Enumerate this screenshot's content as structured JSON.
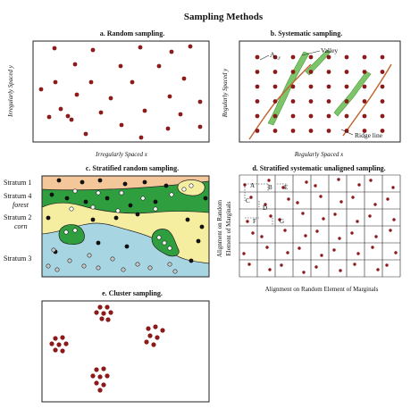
{
  "title": "Sampling Methods",
  "colors": {
    "dot": "#8b1a1a",
    "valley": "#7ec46a",
    "ridge": "#c0622a",
    "stratum1": "#f3c79a",
    "stratum4_forest": "#2e9e3f",
    "stratum2_corn": "#f5eea0",
    "stratum3": "#a8d5e2",
    "cluster_dot": "#8b1a1a"
  },
  "panels": {
    "a": {
      "title": "a. Random sampling.",
      "ylabel": "Irregularly Spaced y",
      "xlabel": "Irregularly Spaced x"
    },
    "b": {
      "title": "b. Systematic sampling.",
      "ylabel": "Regularly Spaced y",
      "xlabel": "Regularly Spaced x",
      "label_axy": "A",
      "label_axy_sub": "x,y",
      "label_valley": "Valley",
      "label_ridge": "Ridge line"
    },
    "c": {
      "title": "c. Stratified random sampling.",
      "strata": [
        {
          "name": "Stratum 1",
          "sub": ""
        },
        {
          "name": "Stratum 4",
          "sub": "forest"
        },
        {
          "name": "Stratum 2",
          "sub": "corn"
        },
        {
          "name": "Stratum 3",
          "sub": ""
        }
      ]
    },
    "d": {
      "title": "d. Stratified systematic unaligned sampling.",
      "ylabel_1": "Alignment on Random",
      "ylabel_2": "Element of Marginals",
      "xlabel": "Alignment on Random Element of Marginals",
      "point_labels": [
        "A",
        "B",
        "E",
        "C",
        "D",
        "F",
        "G"
      ]
    },
    "e": {
      "title": "e. Cluster sampling."
    }
  }
}
